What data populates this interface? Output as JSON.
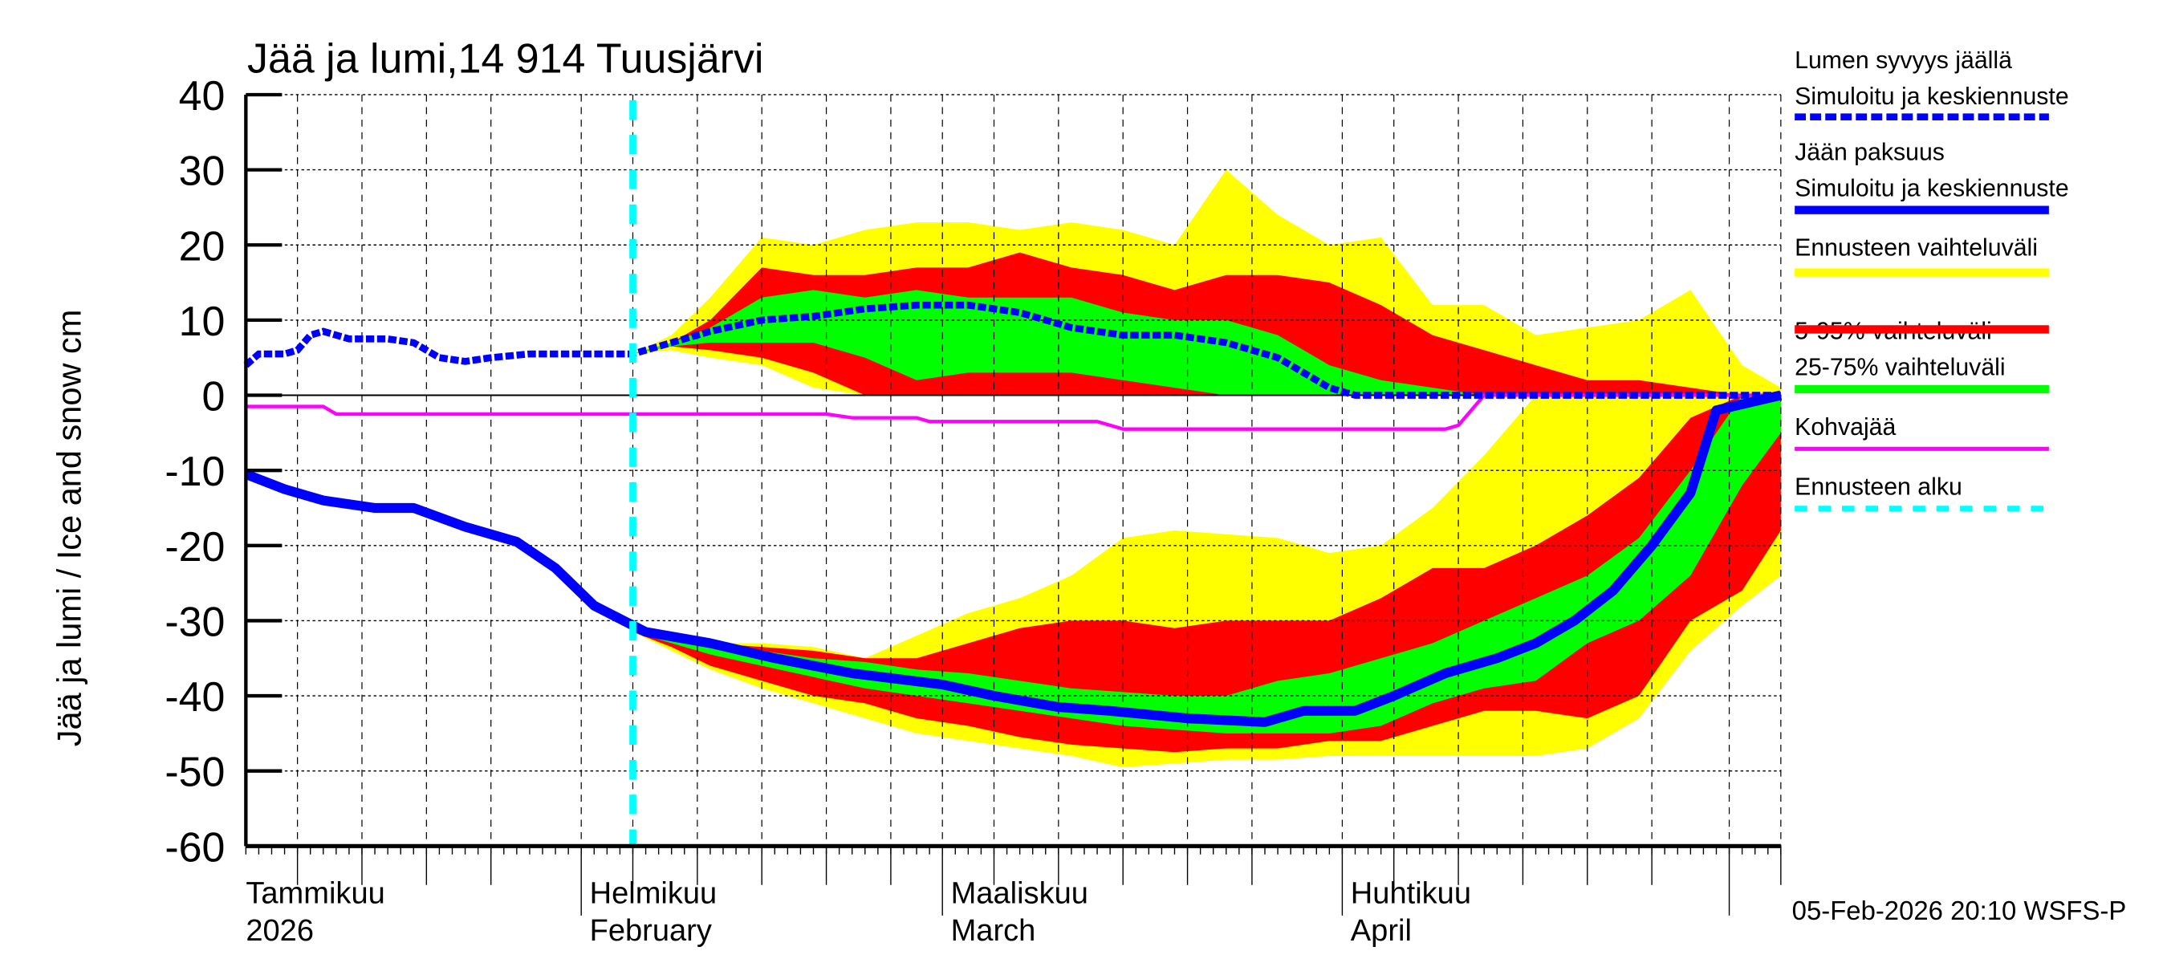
{
  "chart_data": {
    "type": "area",
    "title": "Jää ja lumi,14 914 Tuusjärvi",
    "ylabel": "Jää ja lumi / Ice and snow    cm",
    "ylim": [
      -60,
      40
    ],
    "yticks": [
      "40",
      "30",
      "20",
      "10",
      "0",
      "-10",
      "-20",
      "-30",
      "-40",
      "-50",
      "-60"
    ],
    "xlim": [
      "2026-01-06",
      "2026-05-05"
    ],
    "grid": true,
    "legend_position": "right",
    "month_labels": [
      {
        "date": "2026-01-06",
        "fi": "Tammikuu",
        "en": "2026"
      },
      {
        "date": "2026-02-01",
        "fi": "Helmikuu",
        "en": "February"
      },
      {
        "date": "2026-03-01",
        "fi": "Maaliskuu",
        "en": "March"
      },
      {
        "date": "2026-04-01",
        "fi": "Huhtikuu",
        "en": "April"
      }
    ],
    "forecast_start": "2026-02-05",
    "timestamp": "05-Feb-2026 20:10 WSFS-P",
    "colors": {
      "snow": "#0000ff",
      "ice": "#0000ff",
      "range": "#ffff00",
      "p5_95": "#ff0000",
      "p25_75": "#00ff00",
      "slush": "#ff00ff",
      "forecast_start": "#00ffff"
    },
    "legend": [
      {
        "label1": "Lumen syvyys jäällä",
        "label2": "Simuloitu ja keskiennuste",
        "style": "dotted",
        "color": "#0000ff"
      },
      {
        "label1": "Jään paksuus",
        "label2": "Simuloitu ja keskiennuste",
        "style": "solid",
        "color": "#0000ff"
      },
      {
        "label1": "Ennusteen vaihteluväli",
        "style": "band",
        "color": "#ffff00"
      },
      {
        "label1": "5-95% vaihteluväli",
        "style": "band",
        "color": "#ff0000"
      },
      {
        "label1": "25-75% vaihteluväli",
        "style": "band",
        "color": "#00ff00"
      },
      {
        "label1": "Kohvajää",
        "style": "thin",
        "color": "#ff00ff"
      },
      {
        "label1": "Ennusteen alku",
        "style": "dashed",
        "color": "#00ffff"
      }
    ],
    "band_dates": [
      "2026-02-05",
      "2026-02-08",
      "2026-02-11",
      "2026-02-15",
      "2026-02-19",
      "2026-02-23",
      "2026-02-27",
      "2026-03-03",
      "2026-03-07",
      "2026-03-11",
      "2026-03-15",
      "2026-03-19",
      "2026-03-23",
      "2026-03-27",
      "2026-03-31",
      "2026-04-04",
      "2026-04-08",
      "2026-04-12",
      "2026-04-16",
      "2026-04-20",
      "2026-04-24",
      "2026-04-28",
      "2026-05-02",
      "2026-05-05"
    ],
    "snow_bands": {
      "range_upper": [
        5.5,
        8,
        13,
        21,
        20,
        22,
        23,
        23,
        22,
        23,
        22,
        20,
        30,
        24,
        20,
        21,
        12,
        12,
        8,
        9,
        10,
        14,
        4,
        1
      ],
      "range_lower": [
        5.5,
        6,
        5,
        4,
        1,
        0,
        0,
        0,
        0,
        0,
        0,
        0,
        0,
        0,
        0,
        0,
        0,
        0,
        0,
        0,
        0,
        0,
        0,
        0
      ],
      "p5_95_upper": [
        5.5,
        7,
        10,
        17,
        16,
        16,
        17,
        17,
        19,
        17,
        16,
        14,
        16,
        16,
        15,
        12,
        8,
        6,
        4,
        2,
        2,
        1,
        0,
        0
      ],
      "p5_95_lower": [
        5.5,
        6.5,
        6,
        5,
        3,
        0,
        0,
        0,
        0,
        0,
        0,
        0,
        0,
        0,
        0,
        0,
        0,
        0,
        0,
        0,
        0,
        0,
        0,
        0
      ],
      "p25_75_upper": [
        5.5,
        7,
        9,
        13,
        14,
        13,
        14,
        13,
        13,
        13,
        11,
        10,
        10,
        8,
        4,
        2,
        1,
        0,
        0,
        0,
        0,
        0,
        0,
        0
      ],
      "p25_75_lower": [
        5.5,
        6.5,
        7,
        7,
        7,
        5,
        2,
        3,
        3,
        3,
        2,
        1,
        0,
        0,
        0,
        0,
        0,
        0,
        0,
        0,
        0,
        0,
        0,
        0
      ]
    },
    "ice_bands": {
      "range_upper": [
        -31.5,
        -32,
        -33,
        -33,
        -33.5,
        -35,
        -32,
        -29,
        -27,
        -24,
        -19,
        -18,
        -18.5,
        -19,
        -21,
        -20,
        -15,
        -8,
        0,
        0,
        0,
        0,
        0,
        0
      ],
      "range_lower": [
        -31.5,
        -34,
        -36.5,
        -39,
        -41,
        -43,
        -45,
        -46,
        -47,
        -48,
        -49.5,
        -49,
        -48.5,
        -48.5,
        -48,
        -48,
        -48,
        -48,
        -48,
        -47,
        -43,
        -34,
        -28,
        -24
      ],
      "p5_95_upper": [
        -31.5,
        -32,
        -33,
        -33.5,
        -34,
        -35,
        -35,
        -33,
        -31,
        -30,
        -30,
        -31,
        -30,
        -30,
        -30,
        -27,
        -23,
        -23,
        -20,
        -16,
        -11,
        -3,
        0,
        0
      ],
      "p5_95_lower": [
        -31.5,
        -33.5,
        -36,
        -38,
        -40,
        -41,
        -43,
        -44,
        -45.5,
        -46.5,
        -47,
        -47.5,
        -47,
        -47,
        -46,
        -46,
        -44,
        -42,
        -42,
        -43,
        -40,
        -30,
        -26,
        -18
      ],
      "p25_75_upper": [
        -31.5,
        -32,
        -33,
        -34,
        -35,
        -35.5,
        -36.5,
        -37,
        -38,
        -39,
        -39.5,
        -40,
        -40,
        -38,
        -37,
        -35,
        -33,
        -30,
        -27,
        -24,
        -19,
        -10,
        0,
        0
      ],
      "p25_75_lower": [
        -31.5,
        -33,
        -34.5,
        -36,
        -37.5,
        -39,
        -40,
        -41,
        -42,
        -43,
        -44,
        -44.5,
        -45,
        -45,
        -45,
        -44,
        -41,
        -39,
        -38,
        -33,
        -30,
        -24,
        -12,
        -5
      ]
    },
    "snow_depth": {
      "x": [
        "2026-01-06",
        "2026-01-07",
        "2026-01-09",
        "2026-01-10",
        "2026-01-11",
        "2026-01-12",
        "2026-01-14",
        "2026-01-17",
        "2026-01-19",
        "2026-01-20",
        "2026-01-21",
        "2026-01-23",
        "2026-01-25",
        "2026-01-28",
        "2026-02-05",
        "2026-02-08",
        "2026-02-11",
        "2026-02-15",
        "2026-02-19",
        "2026-02-23",
        "2026-02-27",
        "2026-03-03",
        "2026-03-07",
        "2026-03-11",
        "2026-03-15",
        "2026-03-19",
        "2026-03-23",
        "2026-03-27",
        "2026-03-31",
        "2026-04-02",
        "2026-05-05"
      ],
      "y": [
        4,
        5.5,
        5.5,
        6,
        8,
        8.5,
        7.5,
        7.5,
        7,
        6,
        5,
        4.5,
        5,
        5.5,
        5.5,
        7,
        8.5,
        10,
        10.5,
        11.5,
        12,
        12,
        11,
        9,
        8,
        8,
        7,
        5,
        1,
        0,
        0
      ]
    },
    "ice_thickness": {
      "x": [
        "2026-01-06",
        "2026-01-09",
        "2026-01-12",
        "2026-01-16",
        "2026-01-19",
        "2026-01-23",
        "2026-01-27",
        "2026-01-30",
        "2026-02-02",
        "2026-02-06",
        "2026-02-11",
        "2026-02-16",
        "2026-02-22",
        "2026-03-01",
        "2026-03-05",
        "2026-03-10",
        "2026-03-14",
        "2026-03-20",
        "2026-03-26",
        "2026-03-29",
        "2026-04-02",
        "2026-04-05",
        "2026-04-09",
        "2026-04-13",
        "2026-04-16",
        "2026-04-19",
        "2026-04-22",
        "2026-04-25",
        "2026-04-28",
        "2026-04-30",
        "2026-05-05"
      ],
      "y": [
        -10.5,
        -12.5,
        -14,
        -15,
        -15,
        -17.5,
        -19.5,
        -23,
        -28,
        -31.5,
        -33,
        -35,
        -37,
        -38.5,
        -40,
        -41.5,
        -42,
        -43,
        -43.5,
        -42,
        -42,
        -40,
        -37,
        -35,
        -33,
        -30,
        -26,
        -20,
        -13,
        -2,
        0
      ]
    },
    "slush_ice": {
      "x": [
        "2026-01-06",
        "2026-01-12",
        "2026-01-13",
        "2026-02-20",
        "2026-02-22",
        "2026-02-27",
        "2026-02-28",
        "2026-03-13",
        "2026-03-15",
        "2026-04-09",
        "2026-04-10",
        "2026-04-12",
        "2026-05-05"
      ],
      "y": [
        -1.5,
        -1.5,
        -2.5,
        -2.5,
        -3,
        -3,
        -3.5,
        -3.5,
        -4.5,
        -4.5,
        -4,
        0,
        0
      ]
    }
  }
}
